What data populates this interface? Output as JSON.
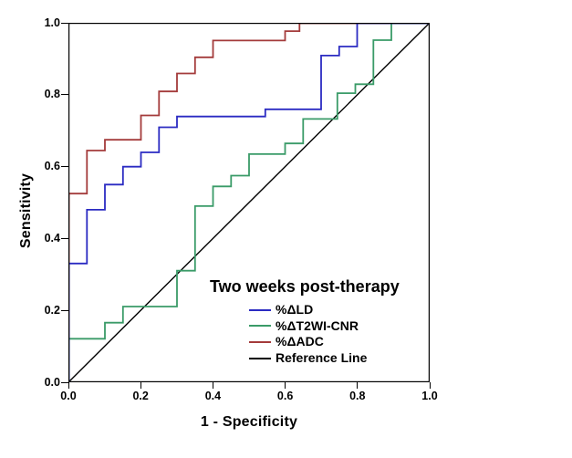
{
  "chart_data": {
    "type": "line",
    "variant": "roc-step-curves",
    "title": "Two weeks post-therapy",
    "xlabel": "1 - Specificity",
    "ylabel": "Sensitivity",
    "xlim": [
      0,
      1
    ],
    "ylim": [
      0,
      1
    ],
    "xticks": [
      "0.0",
      "0.2",
      "0.4",
      "0.6",
      "0.8",
      "1.0"
    ],
    "yticks": [
      "0.0",
      "0.2",
      "0.4",
      "0.6",
      "0.8",
      "1.0"
    ],
    "grid": false,
    "legend_position": "inside-bottom-right",
    "background_color": "#ffffff",
    "axis_color": "#000000",
    "series": [
      {
        "name": "%ΔLD",
        "color": "#2b2bc2",
        "points": [
          [
            0,
            0
          ],
          [
            0,
            0.33
          ],
          [
            0.05,
            0.33
          ],
          [
            0.05,
            0.48
          ],
          [
            0.1,
            0.48
          ],
          [
            0.1,
            0.55
          ],
          [
            0.15,
            0.55
          ],
          [
            0.15,
            0.6
          ],
          [
            0.2,
            0.6
          ],
          [
            0.2,
            0.64
          ],
          [
            0.25,
            0.64
          ],
          [
            0.25,
            0.71
          ],
          [
            0.3,
            0.71
          ],
          [
            0.3,
            0.74
          ],
          [
            0.545,
            0.74
          ],
          [
            0.545,
            0.76
          ],
          [
            0.7,
            0.76
          ],
          [
            0.7,
            0.91
          ],
          [
            0.75,
            0.91
          ],
          [
            0.75,
            0.935
          ],
          [
            0.8,
            0.935
          ],
          [
            0.8,
            1
          ],
          [
            1,
            1
          ]
        ]
      },
      {
        "name": "%ΔT2WI-CNR",
        "color": "#3a9b68",
        "points": [
          [
            0,
            0
          ],
          [
            0,
            0.12
          ],
          [
            0.1,
            0.12
          ],
          [
            0.1,
            0.165
          ],
          [
            0.15,
            0.165
          ],
          [
            0.15,
            0.21
          ],
          [
            0.3,
            0.21
          ],
          [
            0.3,
            0.31
          ],
          [
            0.35,
            0.31
          ],
          [
            0.35,
            0.49
          ],
          [
            0.4,
            0.49
          ],
          [
            0.4,
            0.545
          ],
          [
            0.45,
            0.545
          ],
          [
            0.45,
            0.575
          ],
          [
            0.5,
            0.575
          ],
          [
            0.5,
            0.635
          ],
          [
            0.6,
            0.635
          ],
          [
            0.6,
            0.665
          ],
          [
            0.65,
            0.665
          ],
          [
            0.65,
            0.733
          ],
          [
            0.745,
            0.733
          ],
          [
            0.745,
            0.805
          ],
          [
            0.795,
            0.805
          ],
          [
            0.795,
            0.83
          ],
          [
            0.845,
            0.83
          ],
          [
            0.845,
            0.953
          ],
          [
            0.895,
            0.953
          ],
          [
            0.895,
            1
          ],
          [
            1,
            1
          ]
        ]
      },
      {
        "name": "%ΔADC",
        "color": "#a43b3b",
        "points": [
          [
            0,
            0
          ],
          [
            0,
            0.525
          ],
          [
            0.05,
            0.525
          ],
          [
            0.05,
            0.645
          ],
          [
            0.1,
            0.645
          ],
          [
            0.1,
            0.675
          ],
          [
            0.2,
            0.675
          ],
          [
            0.2,
            0.743
          ],
          [
            0.25,
            0.743
          ],
          [
            0.25,
            0.81
          ],
          [
            0.3,
            0.81
          ],
          [
            0.3,
            0.86
          ],
          [
            0.35,
            0.86
          ],
          [
            0.35,
            0.905
          ],
          [
            0.4,
            0.905
          ],
          [
            0.4,
            0.952
          ],
          [
            0.6,
            0.952
          ],
          [
            0.6,
            0.978
          ],
          [
            0.64,
            0.978
          ],
          [
            0.64,
            1
          ],
          [
            1,
            1
          ]
        ]
      },
      {
        "name": "Reference Line",
        "color": "#000000",
        "points": [
          [
            0,
            0
          ],
          [
            1,
            1
          ]
        ]
      }
    ]
  }
}
